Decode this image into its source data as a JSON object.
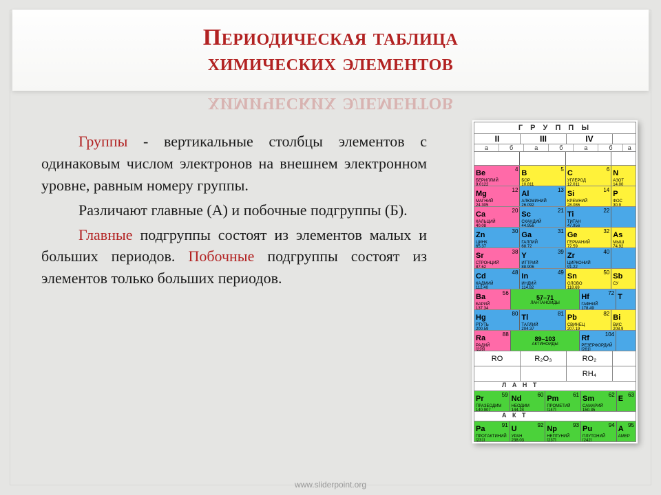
{
  "title": {
    "line1": "Периодическая таблица",
    "line2": "химических элементов",
    "color": "#b22222",
    "fontsize": 34
  },
  "body": {
    "p1_lead": "Группы",
    "p1_rest": " - вертикальные столбцы элементов с одинаковым числом электронов на внешнем электронном уровне, равным номеру группы.",
    "p2": "Различают главные (А) и побочные подгруппы (Б).",
    "p3_lead": "Главные",
    "p3_rest": " подгруппы состоят из элементов малых и больших периодов.",
    "p4_lead": "Побочные",
    "p4_rest": " подгруппы состоят из элементов только больших периодов."
  },
  "footer": "www.sliderpoint.org",
  "colors": {
    "bg": "#e5e5e3",
    "red": "#b22222",
    "pink": "#ff6aa8",
    "yellow": "#fff23a",
    "blue": "#4aa8e8",
    "green": "#4bd23a",
    "white": "#ffffff",
    "gray": "#d7d7d7"
  },
  "ptable": {
    "header": "Г Р У П П Ы",
    "romans": [
      "II",
      "III",
      "IV",
      ""
    ],
    "subs": [
      "а",
      "б",
      "а",
      "б",
      "а",
      "б",
      "а"
    ],
    "rows": [
      [
        {
          "sym": "Be",
          "num": "4",
          "nm": "БЕРИЛЛИЙ",
          "wt": "9.0122",
          "bg": "pink"
        },
        {
          "sym": "B",
          "num": "5",
          "nm": "БОР",
          "wt": "10.811",
          "bg": "yellow"
        },
        {
          "sym": "C",
          "num": "6",
          "nm": "УГЛЕРОД",
          "wt": "12.011",
          "bg": "yellow"
        },
        {
          "sym": "N",
          "num": "",
          "nm": "АЗОТ",
          "wt": "14.00",
          "bg": "yellow",
          "half": true
        }
      ],
      [
        {
          "sym": "Mg",
          "num": "12",
          "nm": "МАГНИЙ",
          "wt": "24.305",
          "bg": "pink"
        },
        {
          "sym": "Al",
          "num": "13",
          "nm": "АЛЮМИНИЙ",
          "wt": "26.092",
          "bg": "blue"
        },
        {
          "sym": "Si",
          "num": "14",
          "nm": "КРЕМНИЙ",
          "wt": "28.086",
          "bg": "yellow"
        },
        {
          "sym": "P",
          "num": "",
          "nm": "ФОС",
          "wt": "30.9",
          "bg": "yellow",
          "half": true
        }
      ],
      [
        {
          "sym": "Ca",
          "num": "20",
          "nm": "КАЛЬЦИЙ",
          "wt": "40.08",
          "bg": "pink"
        },
        {
          "sym": "Sc",
          "num": "21",
          "nm": "СКАНДИЙ",
          "wt": "44.956",
          "bg": "blue"
        },
        {
          "sym": "Ti",
          "num": "22",
          "nm": "ТИТАН",
          "wt": "47.956",
          "bg": "blue"
        },
        {
          "sym": "",
          "num": "",
          "nm": "",
          "wt": "",
          "bg": "blue",
          "half": true
        }
      ],
      [
        {
          "sym": "Zn",
          "num": "30",
          "nm": "ЦИНК",
          "wt": "65.37",
          "bg": "blue"
        },
        {
          "sym": "Ga",
          "num": "31",
          "nm": "ГАЛЛИЙ",
          "wt": "68.72",
          "bg": "blue"
        },
        {
          "sym": "Ge",
          "num": "32",
          "nm": "ГЕРМАНИЙ",
          "wt": "72.59",
          "bg": "yellow"
        },
        {
          "sym": "As",
          "num": "",
          "nm": "МЫШ",
          "wt": "74.92",
          "bg": "yellow",
          "half": true
        }
      ],
      [
        {
          "sym": "Sr",
          "num": "38",
          "nm": "СТРОНЦИЙ",
          "wt": "87.62",
          "bg": "pink"
        },
        {
          "sym": "Y",
          "num": "39",
          "nm": "ИТТРИЙ",
          "wt": "88.906",
          "bg": "blue"
        },
        {
          "sym": "Zr",
          "num": "40",
          "nm": "ЦИРКОНИЙ",
          "wt": "91.22",
          "bg": "blue"
        },
        {
          "sym": "",
          "num": "",
          "nm": "",
          "wt": "",
          "bg": "blue",
          "half": true
        }
      ],
      [
        {
          "sym": "Cd",
          "num": "48",
          "nm": "КАДМИЙ",
          "wt": "112.40",
          "bg": "blue"
        },
        {
          "sym": "In",
          "num": "49",
          "nm": "ИНДИЙ",
          "wt": "114.82",
          "bg": "blue"
        },
        {
          "sym": "Sn",
          "num": "50",
          "nm": "ОЛОВО",
          "wt": "118.69",
          "bg": "yellow"
        },
        {
          "sym": "Sb",
          "num": "",
          "nm": "СУ",
          "wt": "",
          "bg": "yellow",
          "half": true
        }
      ],
      [
        {
          "sym": "Ba",
          "num": "56",
          "nm": "БАРИЙ",
          "wt": "137.34",
          "bg": "pink"
        },
        {
          "sym": "57–71",
          "num": "",
          "nm": "ЛАНТАНОИДЫ",
          "wt": "",
          "bg": "green",
          "wide": true
        },
        {
          "sym": "Hf",
          "num": "72",
          "nm": "ГАФНИЙ",
          "wt": "178.49",
          "bg": "blue"
        },
        {
          "sym": "T",
          "num": "",
          "nm": "",
          "wt": "",
          "bg": "blue",
          "half": true
        }
      ],
      [
        {
          "sym": "Hg",
          "num": "80",
          "nm": "РТУТЬ",
          "wt": "200.59",
          "bg": "blue"
        },
        {
          "sym": "Tl",
          "num": "81",
          "nm": "ТАЛЛИЙ",
          "wt": "204.37",
          "bg": "blue"
        },
        {
          "sym": "Pb",
          "num": "82",
          "nm": "СВИНЕЦ",
          "wt": "207.19",
          "bg": "yellow"
        },
        {
          "sym": "Bi",
          "num": "",
          "nm": "ВИС",
          "wt": "208.9",
          "bg": "yellow",
          "half": true
        }
      ],
      [
        {
          "sym": "Ra",
          "num": "88",
          "nm": "РАДИЙ",
          "wt": "[226]",
          "bg": "pink"
        },
        {
          "sym": "89–103",
          "num": "",
          "nm": "АКТИНОИДЫ",
          "wt": "",
          "bg": "green",
          "wide": true
        },
        {
          "sym": "Rf",
          "num": "104",
          "nm": "РЕЗЕРФОРДИЙ",
          "wt": "[261]",
          "bg": "blue"
        },
        {
          "sym": "",
          "num": "",
          "nm": "",
          "wt": "",
          "bg": "blue",
          "half": true
        }
      ]
    ],
    "oxide_rows": [
      [
        "RO",
        "R₂O₃",
        "RO₂",
        ""
      ],
      [
        "",
        "",
        "RH₄",
        ""
      ]
    ],
    "lant_label": "Л А Н Т",
    "lant_row": [
      {
        "sym": "Pr",
        "num": "59",
        "nm": "ПРАЗЕОДИМ",
        "wt": "140.907",
        "bg": "green"
      },
      {
        "sym": "Nd",
        "num": "60",
        "nm": "НЕОДИМ",
        "wt": "144.24",
        "bg": "green"
      },
      {
        "sym": "Pm",
        "num": "61",
        "nm": "ПРОМЕТИЙ",
        "wt": "[147]",
        "bg": "green"
      },
      {
        "sym": "Sm",
        "num": "62",
        "nm": "САМАРИЙ",
        "wt": "150.35",
        "bg": "green"
      },
      {
        "sym": "E",
        "num": "63",
        "nm": "",
        "wt": "",
        "bg": "green",
        "half": true
      }
    ],
    "act_label": "А К Т",
    "act_row": [
      {
        "sym": "Pa",
        "num": "91",
        "nm": "ПРОТАКТИНИЙ",
        "wt": "[231]",
        "bg": "green"
      },
      {
        "sym": "U",
        "num": "92",
        "nm": "УРАН",
        "wt": "238.03",
        "bg": "green"
      },
      {
        "sym": "Np",
        "num": "93",
        "nm": "НЕПТУНИЙ",
        "wt": "[237]",
        "bg": "green"
      },
      {
        "sym": "Pu",
        "num": "94",
        "nm": "ПЛУТОНИЙ",
        "wt": "[242]",
        "bg": "green"
      },
      {
        "sym": "A",
        "num": "95",
        "nm": "АМЕР",
        "wt": "",
        "bg": "green",
        "half": true
      }
    ]
  }
}
